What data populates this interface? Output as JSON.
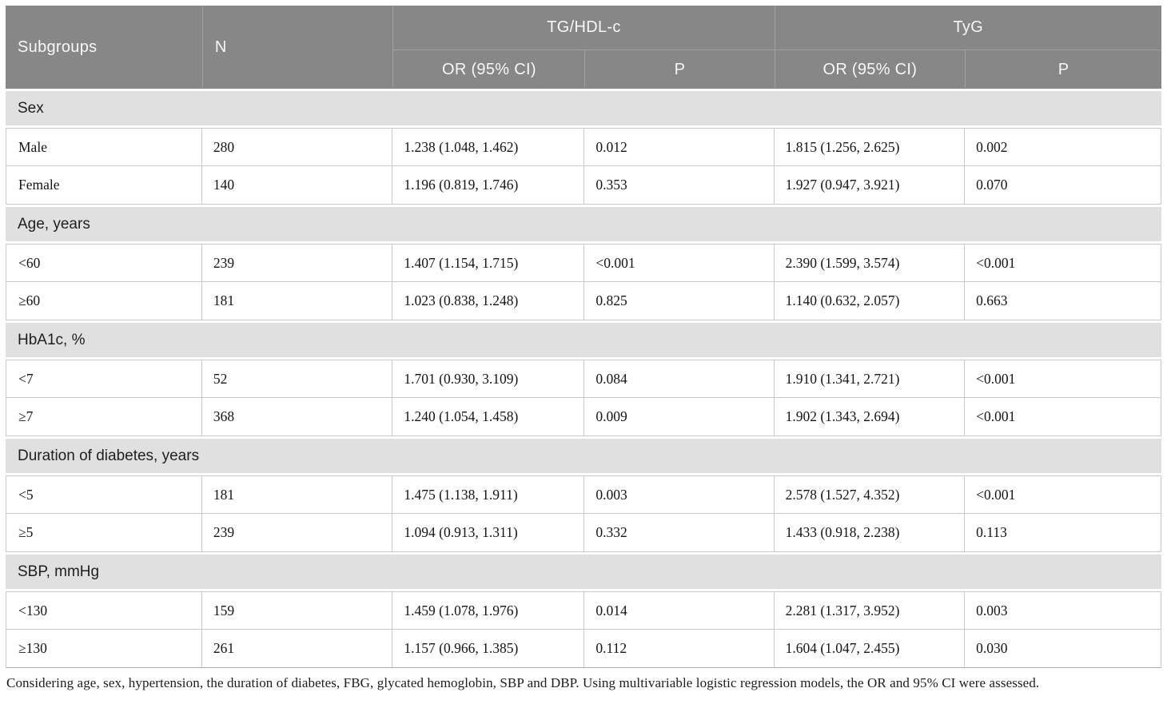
{
  "table": {
    "header": {
      "subgroups": "Subgroups",
      "n": "N",
      "group_tghdl": "TG/HDL-c",
      "group_tyg": "TyG",
      "or_ci": "OR (95% CI)",
      "p": "P"
    },
    "sections": [
      {
        "label": "Sex",
        "rows": [
          {
            "subgroup": "Male",
            "n": "280",
            "tghdl_or": "1.238 (1.048, 1.462)",
            "tghdl_p": "0.012",
            "tyg_or": "1.815 (1.256, 2.625)",
            "tyg_p": "0.002"
          },
          {
            "subgroup": "Female",
            "n": "140",
            "tghdl_or": "1.196 (0.819, 1.746)",
            "tghdl_p": "0.353",
            "tyg_or": "1.927 (0.947, 3.921)",
            "tyg_p": "0.070"
          }
        ]
      },
      {
        "label": "Age, years",
        "rows": [
          {
            "subgroup": "<60",
            "n": "239",
            "tghdl_or": "1.407 (1.154, 1.715)",
            "tghdl_p": "<0.001",
            "tyg_or": "2.390 (1.599, 3.574)",
            "tyg_p": "<0.001"
          },
          {
            "subgroup": "≥60",
            "n": "181",
            "tghdl_or": "1.023 (0.838, 1.248)",
            "tghdl_p": "0.825",
            "tyg_or": "1.140 (0.632, 2.057)",
            "tyg_p": "0.663"
          }
        ]
      },
      {
        "label": "HbA1c, %",
        "rows": [
          {
            "subgroup": "<7",
            "n": "52",
            "tghdl_or": "1.701 (0.930, 3.109)",
            "tghdl_p": "0.084",
            "tyg_or": "1.910 (1.341, 2.721)",
            "tyg_p": "<0.001"
          },
          {
            "subgroup": "≥7",
            "n": "368",
            "tghdl_or": "1.240 (1.054, 1.458)",
            "tghdl_p": "0.009",
            "tyg_or": "1.902 (1.343, 2.694)",
            "tyg_p": "<0.001"
          }
        ]
      },
      {
        "label": "Duration of diabetes, years",
        "rows": [
          {
            "subgroup": "<5",
            "n": "181",
            "tghdl_or": "1.475 (1.138, 1.911)",
            "tghdl_p": "0.003",
            "tyg_or": "2.578 (1.527, 4.352)",
            "tyg_p": "<0.001"
          },
          {
            "subgroup": "≥5",
            "n": "239",
            "tghdl_or": "1.094 (0.913, 1.311)",
            "tghdl_p": "0.332",
            "tyg_or": "1.433 (0.918, 2.238)",
            "tyg_p": "0.113"
          }
        ]
      },
      {
        "label": "SBP, mmHg",
        "rows": [
          {
            "subgroup": "<130",
            "n": "159",
            "tghdl_or": "1.459 (1.078, 1.976)",
            "tghdl_p": "0.014",
            "tyg_or": "2.281 (1.317, 3.952)",
            "tyg_p": "0.003"
          },
          {
            "subgroup": "≥130",
            "n": "261",
            "tghdl_or": "1.157 (0.966, 1.385)",
            "tghdl_p": "0.112",
            "tyg_or": "1.604 (1.047, 2.455)",
            "tyg_p": "0.030"
          }
        ]
      }
    ],
    "footnote": "Considering age, sex, hypertension, the duration of diabetes, FBG, glycated hemoglobin, SBP and DBP. Using multivariable logistic regression models, the OR and 95% CI were assessed.",
    "colors": {
      "header_bg": "#878787",
      "section_bg": "#e0e0e0",
      "border": "#c9c9c9",
      "header_text": "#f7f7f7"
    }
  }
}
